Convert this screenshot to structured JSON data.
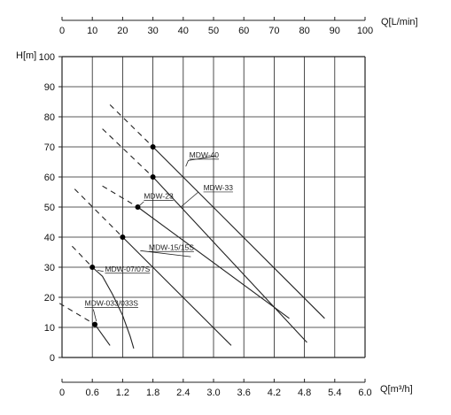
{
  "chart_data": {
    "type": "line",
    "title": "",
    "top_axis": {
      "label": "Q[L/min]",
      "min": 0,
      "max": 100,
      "ticks": [
        "0",
        "10",
        "20",
        "30",
        "40",
        "50",
        "60",
        "70",
        "80",
        "90",
        "100"
      ]
    },
    "xlabel": "Q[m³/h]",
    "ylabel": "H[m]",
    "xlim": [
      0,
      6.0
    ],
    "ylim": [
      0,
      100
    ],
    "x_ticks": [
      "0",
      "0.6",
      "1.2",
      "1.8",
      "2.4",
      "3.0",
      "3.6",
      "4.2",
      "4.8",
      "5.4",
      "6.0"
    ],
    "y_ticks": [
      "0",
      "10",
      "20",
      "30",
      "40",
      "50",
      "60",
      "70",
      "80",
      "90",
      "100"
    ],
    "grid": true,
    "series": [
      {
        "name": "MDW-033/033S",
        "dashed": [
          [
            -0.05,
            18
          ],
          [
            0.65,
            11
          ]
        ],
        "solid": [
          [
            0.65,
            11
          ],
          [
            0.95,
            4
          ]
        ],
        "marker": [
          0.65,
          11
        ],
        "label_at": [
          0.45,
          17.2
        ],
        "leader": [
          [
            0.62,
            16.0
          ],
          [
            0.68,
            12.0
          ]
        ]
      },
      {
        "name": "MDW-07/07S",
        "dashed": [
          [
            0.2,
            37
          ],
          [
            0.6,
            30
          ]
        ],
        "solid": [
          [
            0.6,
            30
          ],
          [
            0.8,
            27
          ],
          [
            1.0,
            21
          ],
          [
            1.2,
            14
          ],
          [
            1.35,
            7
          ],
          [
            1.42,
            3
          ]
        ],
        "marker": [
          0.6,
          30
        ],
        "label_at": [
          0.85,
          28.6
        ],
        "leader": [
          [
            0.82,
            28.6
          ],
          [
            0.7,
            29
          ]
        ]
      },
      {
        "name": "MDW-15/15S",
        "dashed": [
          [
            0.25,
            56
          ],
          [
            1.2,
            40
          ]
        ],
        "solid": [
          [
            1.2,
            40
          ],
          [
            3.35,
            4
          ]
        ],
        "marker": [
          1.2,
          40
        ],
        "label_at": [
          1.72,
          35.8
        ],
        "leader": [
          [
            2.55,
            33.5
          ],
          [
            1.55,
            35.5
          ]
        ]
      },
      {
        "name": "MDW-23",
        "dashed": [
          [
            0.8,
            57
          ],
          [
            1.5,
            50
          ]
        ],
        "solid": [
          [
            1.5,
            50
          ],
          [
            4.5,
            13
          ]
        ],
        "marker": [
          1.5,
          50
        ],
        "label_at": [
          1.62,
          52.8
        ],
        "leader": [
          [
            1.62,
            51.8
          ],
          [
            1.5,
            50
          ]
        ]
      },
      {
        "name": "MDW-33",
        "dashed": [
          [
            0.8,
            76
          ],
          [
            1.8,
            60
          ]
        ],
        "solid": [
          [
            1.8,
            60
          ],
          [
            4.85,
            5
          ]
        ],
        "marker": [
          1.8,
          60
        ],
        "label_at": [
          2.8,
          55.6
        ],
        "leader": [
          [
            2.7,
            55
          ],
          [
            2.35,
            50
          ]
        ]
      },
      {
        "name": "MDW-40",
        "dashed": [
          [
            0.95,
            84
          ],
          [
            1.8,
            70
          ]
        ],
        "solid": [
          [
            1.8,
            70
          ],
          [
            5.2,
            13
          ]
        ],
        "marker": [
          1.8,
          70
        ],
        "label_at": [
          2.52,
          66.5
        ],
        "leader": [
          [
            2.45,
            63.5
          ],
          [
            2.5,
            65.5
          ],
          [
            3.05,
            67.0
          ]
        ]
      }
    ]
  }
}
